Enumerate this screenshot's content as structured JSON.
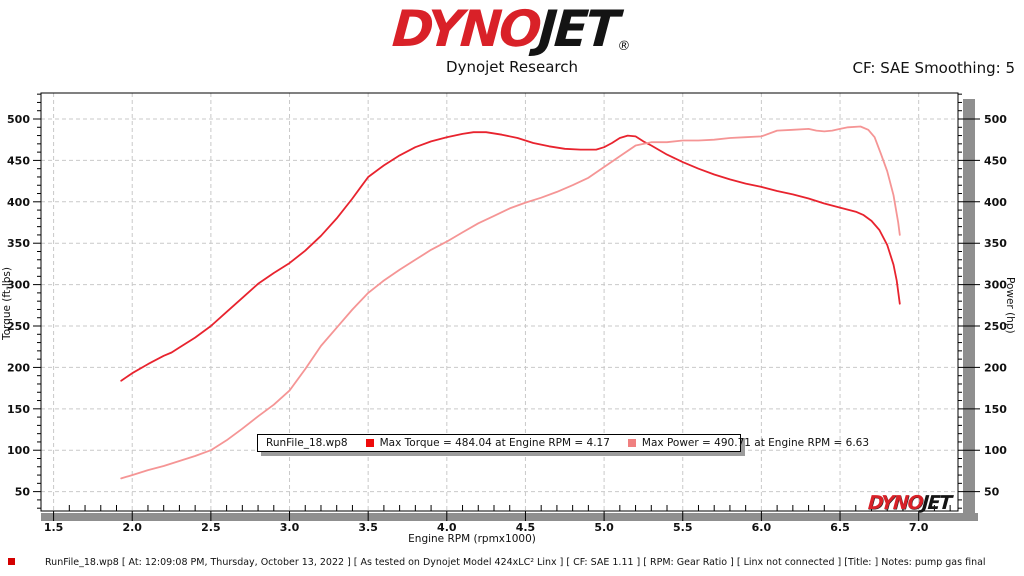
{
  "header": {
    "logo_dyno": "DYNO",
    "logo_jet": "JET",
    "registered": "®",
    "subtitle": "Dynojet Research",
    "smoothing": "CF: SAE Smoothing: 5"
  },
  "legend": {
    "file": "RunFile_18.wp8",
    "torque_label": "Max Torque = 484.04 at Engine RPM = 4.17",
    "power_label": "Max Power = 490.71 at Engine RPM = 6.63"
  },
  "watermark": {
    "dyno": "DYNO",
    "jet": "JET"
  },
  "statusbar": {
    "text": "RunFile_18.wp8 [ At: 12:09:08 PM, Thursday, October 13, 2022 ] [ As tested on Dynojet Model 424xLC² Linx ] [ CF: SAE 1.11 ] [ RPM: Gear Ratio ] [ Linx not connected ] [Title: ]  Notes: pump gas final"
  },
  "colors": {
    "torque_curve": "#e8232e",
    "power_curve": "#f59595",
    "torque_swatch": "#ee0b0b",
    "power_swatch": "#f08080",
    "grid": "#c9c9c9",
    "axis": "#000000",
    "scrollbar": "#8f8f8f",
    "logo_red": "#d92128",
    "logo_black": "#141414"
  },
  "chart_data": {
    "type": "line",
    "title": "Dynojet Research",
    "xlabel": "Engine RPM (rpmx1000)",
    "ylabel_left": "Torque (ft-lbs)",
    "ylabel_right": "Power (hp)",
    "x_major_ticks": [
      1.5,
      2.0,
      2.5,
      3.0,
      3.5,
      4.0,
      4.5,
      5.0,
      5.5,
      6.0,
      6.5,
      7.0
    ],
    "y_major_ticks": [
      50,
      100,
      150,
      200,
      250,
      300,
      350,
      400,
      450,
      500
    ],
    "x_minor_step": 0.1,
    "y_minor_step": 10,
    "x_minor_range": [
      1.5,
      7.2
    ],
    "y_minor_range": [
      30,
      530
    ],
    "xlim": [
      1.42,
      7.25
    ],
    "ylim": [
      26.6,
      531.4
    ],
    "grid": "dashed",
    "legend_position": "bottom-center",
    "max_torque": {
      "value": 484.04,
      "rpm": 4.17
    },
    "max_power": {
      "value": 490.71,
      "rpm": 6.63
    },
    "series": [
      {
        "name": "Torque",
        "axis": "left",
        "units": "ft-lbs",
        "color": "#e8232e",
        "points": [
          [
            1.93,
            184
          ],
          [
            2.0,
            193
          ],
          [
            2.1,
            204
          ],
          [
            2.2,
            214
          ],
          [
            2.25,
            218
          ],
          [
            2.3,
            224
          ],
          [
            2.4,
            236
          ],
          [
            2.5,
            250
          ],
          [
            2.6,
            267
          ],
          [
            2.7,
            284
          ],
          [
            2.8,
            301
          ],
          [
            2.9,
            314
          ],
          [
            3.0,
            326
          ],
          [
            3.1,
            341
          ],
          [
            3.2,
            359
          ],
          [
            3.3,
            380
          ],
          [
            3.4,
            404
          ],
          [
            3.45,
            417
          ],
          [
            3.5,
            430
          ],
          [
            3.6,
            444
          ],
          [
            3.7,
            456
          ],
          [
            3.8,
            466
          ],
          [
            3.9,
            473
          ],
          [
            4.0,
            478
          ],
          [
            4.1,
            482
          ],
          [
            4.17,
            484
          ],
          [
            4.25,
            484
          ],
          [
            4.35,
            481
          ],
          [
            4.45,
            477
          ],
          [
            4.55,
            471
          ],
          [
            4.65,
            467
          ],
          [
            4.75,
            464
          ],
          [
            4.85,
            463
          ],
          [
            4.95,
            463
          ],
          [
            5.0,
            466
          ],
          [
            5.05,
            471
          ],
          [
            5.1,
            477
          ],
          [
            5.15,
            480
          ],
          [
            5.2,
            479
          ],
          [
            5.25,
            473
          ],
          [
            5.3,
            468
          ],
          [
            5.4,
            457
          ],
          [
            5.5,
            448
          ],
          [
            5.6,
            440
          ],
          [
            5.7,
            433
          ],
          [
            5.8,
            427
          ],
          [
            5.9,
            422
          ],
          [
            6.0,
            418
          ],
          [
            6.1,
            413
          ],
          [
            6.2,
            409
          ],
          [
            6.3,
            404
          ],
          [
            6.4,
            398
          ],
          [
            6.5,
            393
          ],
          [
            6.6,
            388
          ],
          [
            6.65,
            384
          ],
          [
            6.7,
            377
          ],
          [
            6.75,
            366
          ],
          [
            6.8,
            348
          ],
          [
            6.84,
            324
          ],
          [
            6.86,
            305
          ],
          [
            6.88,
            277
          ]
        ]
      },
      {
        "name": "Power",
        "axis": "right",
        "units": "hp",
        "color": "#f59595",
        "points": [
          [
            1.93,
            66
          ],
          [
            2.0,
            70
          ],
          [
            2.1,
            76
          ],
          [
            2.2,
            81
          ],
          [
            2.3,
            87
          ],
          [
            2.4,
            93
          ],
          [
            2.5,
            100
          ],
          [
            2.6,
            112
          ],
          [
            2.7,
            126
          ],
          [
            2.8,
            141
          ],
          [
            2.9,
            155
          ],
          [
            3.0,
            172
          ],
          [
            3.1,
            198
          ],
          [
            3.2,
            226
          ],
          [
            3.3,
            248
          ],
          [
            3.4,
            270
          ],
          [
            3.5,
            290
          ],
          [
            3.6,
            305
          ],
          [
            3.7,
            318
          ],
          [
            3.8,
            330
          ],
          [
            3.9,
            342
          ],
          [
            4.0,
            352
          ],
          [
            4.1,
            363
          ],
          [
            4.2,
            374
          ],
          [
            4.3,
            383
          ],
          [
            4.4,
            392
          ],
          [
            4.5,
            399
          ],
          [
            4.6,
            405
          ],
          [
            4.7,
            412
          ],
          [
            4.8,
            420
          ],
          [
            4.9,
            429
          ],
          [
            5.0,
            442
          ],
          [
            5.1,
            455
          ],
          [
            5.2,
            468
          ],
          [
            5.3,
            472
          ],
          [
            5.4,
            472
          ],
          [
            5.5,
            474
          ],
          [
            5.6,
            474
          ],
          [
            5.7,
            475
          ],
          [
            5.8,
            477
          ],
          [
            5.9,
            478
          ],
          [
            6.0,
            479
          ],
          [
            6.1,
            486
          ],
          [
            6.2,
            487
          ],
          [
            6.3,
            488
          ],
          [
            6.35,
            486
          ],
          [
            6.4,
            485
          ],
          [
            6.45,
            486
          ],
          [
            6.5,
            488
          ],
          [
            6.55,
            490
          ],
          [
            6.63,
            491
          ],
          [
            6.68,
            487
          ],
          [
            6.72,
            478
          ],
          [
            6.76,
            458
          ],
          [
            6.8,
            437
          ],
          [
            6.84,
            408
          ],
          [
            6.87,
            375
          ],
          [
            6.88,
            360
          ]
        ]
      }
    ]
  }
}
